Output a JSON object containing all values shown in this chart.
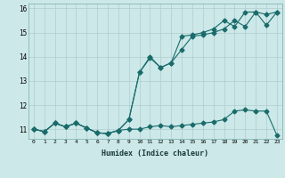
{
  "xlabel": "Humidex (Indice chaleur)",
  "background_color": "#cce8e8",
  "grid_color": "#b0cccc",
  "line_color": "#1a6b6b",
  "xlim": [
    -0.5,
    23.5
  ],
  "ylim": [
    10.6,
    16.2
  ],
  "yticks": [
    11,
    12,
    13,
    14,
    15,
    16
  ],
  "xticks": [
    0,
    1,
    2,
    3,
    4,
    5,
    6,
    7,
    8,
    9,
    10,
    11,
    12,
    13,
    14,
    15,
    16,
    17,
    18,
    19,
    20,
    21,
    22,
    23
  ],
  "series1_x": [
    0,
    1,
    2,
    3,
    4,
    5,
    6,
    7,
    8,
    9,
    10,
    11,
    12,
    13,
    14,
    15,
    16,
    17,
    18,
    19,
    20,
    21,
    22,
    23
  ],
  "series1_y": [
    11.0,
    10.9,
    11.25,
    11.1,
    11.25,
    11.05,
    10.85,
    10.82,
    10.95,
    11.0,
    11.0,
    11.1,
    11.15,
    11.1,
    11.15,
    11.2,
    11.25,
    11.3,
    11.4,
    11.75,
    11.8,
    11.75,
    11.75,
    10.75
  ],
  "series2_x": [
    0,
    1,
    2,
    3,
    4,
    5,
    6,
    7,
    8,
    9,
    10,
    11,
    12,
    13,
    14,
    15,
    16,
    17,
    18,
    19,
    20,
    21,
    22,
    23
  ],
  "series2_y": [
    11.0,
    10.9,
    11.25,
    11.1,
    11.25,
    11.05,
    10.85,
    10.82,
    10.95,
    11.4,
    13.35,
    14.0,
    13.55,
    13.75,
    14.85,
    14.9,
    15.0,
    15.15,
    15.5,
    15.25,
    15.85,
    15.85,
    15.75,
    15.85
  ],
  "series3_x": [
    0,
    1,
    2,
    3,
    4,
    5,
    6,
    7,
    8,
    9,
    10,
    11,
    12,
    13,
    14,
    15,
    16,
    17,
    18,
    19,
    20,
    21,
    22,
    23
  ],
  "series3_y": [
    11.0,
    10.9,
    11.25,
    11.1,
    11.25,
    11.05,
    10.85,
    10.82,
    10.95,
    11.4,
    13.35,
    13.95,
    13.55,
    13.75,
    14.3,
    14.85,
    14.9,
    15.0,
    15.15,
    15.5,
    15.25,
    15.85,
    15.3,
    15.85
  ],
  "marker": "D",
  "marker_size": 2.5,
  "linewidth": 0.8
}
